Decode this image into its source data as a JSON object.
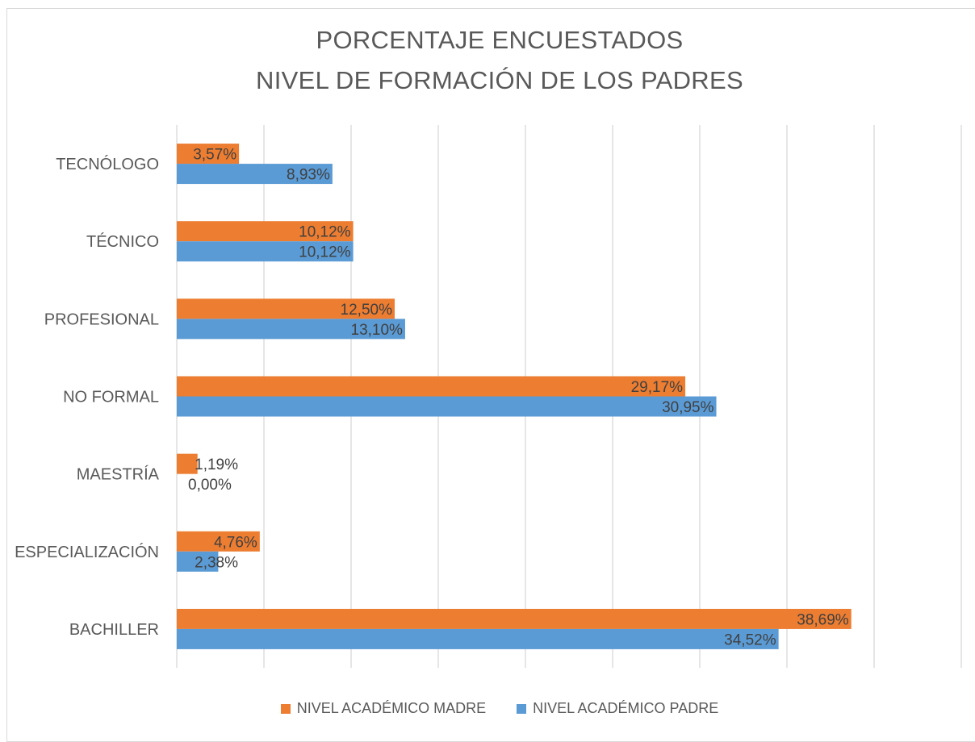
{
  "chart_data": {
    "type": "bar",
    "orientation": "horizontal",
    "title_lines": [
      "PORCENTAJE ENCUESTADOS",
      "NIVEL DE FORMACIÓN DE LOS PADRES"
    ],
    "categories": [
      "BACHILLER",
      "ESPECIALIZACIÓN",
      "MAESTRÍA",
      "NO FORMAL",
      "PROFESIONAL",
      "TÉCNICO",
      "TECNÓLOGO"
    ],
    "series": [
      {
        "name": "NIVEL ACADÉMICO MADRE",
        "color": "#ed7d31",
        "values": [
          38.69,
          4.76,
          1.19,
          29.17,
          12.5,
          10.12,
          3.57
        ],
        "labels": [
          "38,69%",
          "4,76%",
          "1,19%",
          "29,17%",
          "12,50%",
          "10,12%",
          "3,57%"
        ]
      },
      {
        "name": "NIVEL ACADÉMICO PADRE",
        "color": "#5b9bd5",
        "values": [
          34.52,
          2.38,
          0.0,
          30.95,
          13.1,
          10.12,
          8.93
        ],
        "labels": [
          "34,52%",
          "2,38%",
          "0,00%",
          "30,95%",
          "13,10%",
          "10,12%",
          "8,93%"
        ]
      }
    ],
    "xlim": [
      0,
      45
    ],
    "grid": true,
    "legend_position": "bottom"
  }
}
